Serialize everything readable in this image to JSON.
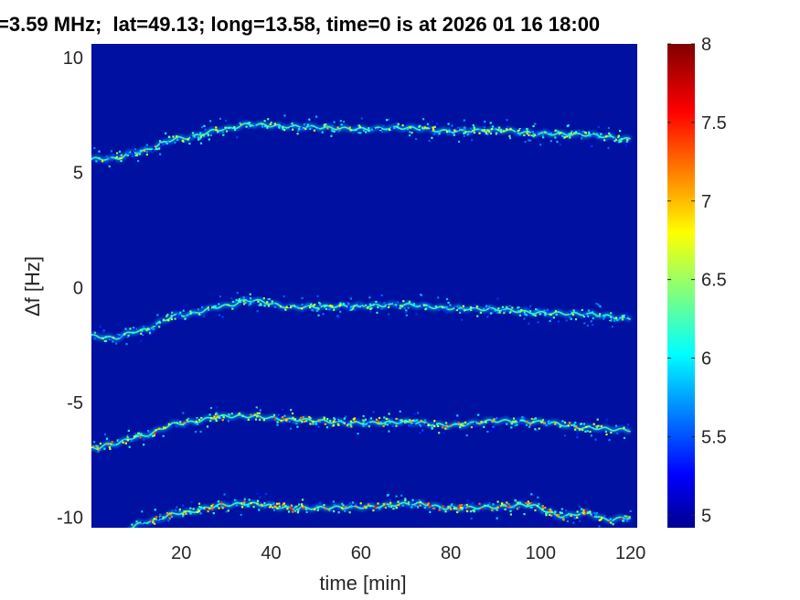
{
  "chart_data": {
    "type": "heatmap",
    "title": "=3.59 MHz;  lat=49.13; long=13.58, time=0 is at 2026 01 16 18:00",
    "xlabel": "time [min]",
    "ylabel": "Δf [Hz]",
    "xlim": [
      0,
      121.5
    ],
    "ylim": [
      -10.45,
      10.6
    ],
    "xticks": [
      20,
      40,
      60,
      80,
      100,
      120
    ],
    "yticks": [
      -10,
      -5,
      0,
      5,
      10
    ],
    "colormap": "jet",
    "background_color": "#0010a0",
    "colorbar": {
      "range": [
        4.92,
        8
      ],
      "ticks": [
        5,
        5.5,
        6,
        6.5,
        7,
        7.5,
        8
      ],
      "tick_labels": [
        "5",
        "5.5",
        "6",
        "6.5",
        "7",
        "7.5",
        "8"
      ]
    },
    "series": [
      {
        "x": [
          0,
          5,
          10,
          20,
          30,
          35,
          45,
          60,
          70,
          80,
          90,
          100,
          110,
          120
        ],
        "y": [
          5.6,
          5.6,
          5.9,
          6.5,
          6.9,
          7.1,
          7.0,
          6.9,
          6.95,
          6.8,
          6.85,
          6.7,
          6.65,
          6.45
        ],
        "peak": 7.2
      },
      {
        "x": [
          0,
          5,
          10,
          20,
          30,
          35,
          45,
          60,
          70,
          80,
          90,
          100,
          110,
          120
        ],
        "y": [
          -2.1,
          -2.2,
          -1.9,
          -1.2,
          -0.8,
          -0.55,
          -0.85,
          -0.8,
          -0.75,
          -0.9,
          -0.95,
          -1.1,
          -1.15,
          -1.35
        ],
        "peak": 7.0
      },
      {
        "x": [
          0,
          5,
          10,
          20,
          30,
          35,
          45,
          60,
          70,
          80,
          90,
          100,
          110,
          120
        ],
        "y": [
          -7.0,
          -6.8,
          -6.5,
          -5.9,
          -5.6,
          -5.6,
          -5.75,
          -5.9,
          -5.85,
          -6.0,
          -5.8,
          -5.85,
          -6.1,
          -6.2
        ],
        "peak": 7.6
      },
      {
        "x": [
          8,
          12,
          20,
          30,
          35,
          45,
          60,
          72,
          80,
          90,
          97,
          105,
          110,
          115,
          120
        ],
        "y": [
          -10.5,
          -10.2,
          -9.8,
          -9.45,
          -9.4,
          -9.6,
          -9.55,
          -9.4,
          -9.6,
          -9.55,
          -9.45,
          -9.95,
          -9.8,
          -10.1,
          -10.0
        ],
        "peak": 7.9
      }
    ]
  }
}
